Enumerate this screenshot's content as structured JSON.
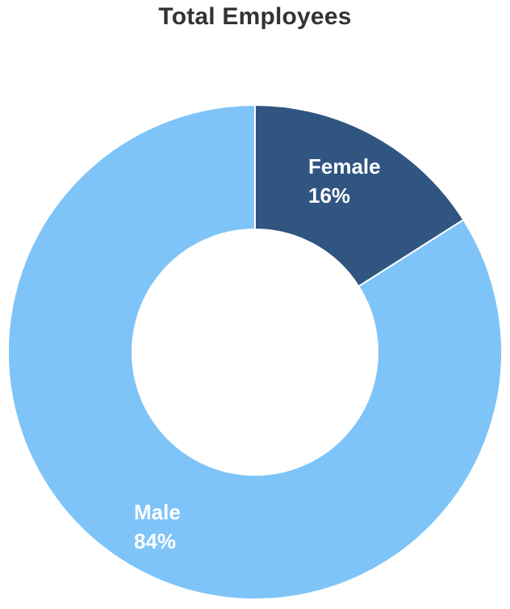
{
  "chart_data": {
    "type": "pie",
    "variant": "donut",
    "title": "Total Employees",
    "slices": [
      {
        "label": "Female",
        "value": 16,
        "value_label": "16%",
        "color": "#2f5580"
      },
      {
        "label": "Male",
        "value": 84,
        "value_label": "84%",
        "color": "#7ec4f8"
      }
    ],
    "start_angle_deg": 0,
    "direction": "clockwise",
    "legend": "none"
  }
}
